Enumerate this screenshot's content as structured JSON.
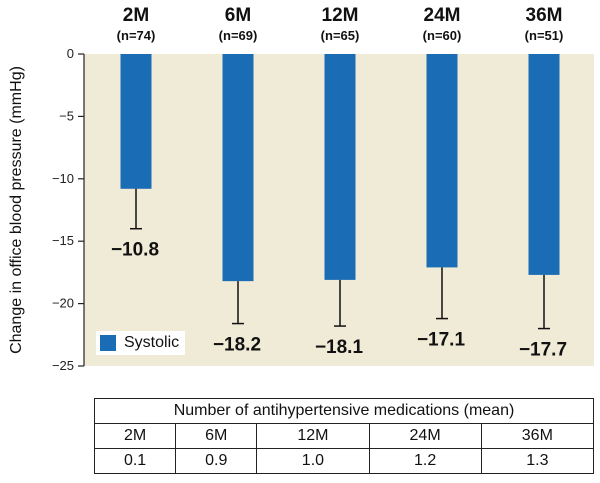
{
  "chart_data": {
    "type": "bar",
    "ylabel": "Change in office blood pressure (mmHg)",
    "ylim": [
      -25,
      0
    ],
    "yticks": [
      0,
      -5,
      -10,
      -15,
      -20,
      -25
    ],
    "yticks_labels": [
      "0",
      "−5",
      "−10",
      "−15",
      "−20",
      "−25"
    ],
    "categories": [
      "2M",
      "6M",
      "12M",
      "24M",
      "36M"
    ],
    "n_labels": [
      "(n=74)",
      "(n=69)",
      "(n=65)",
      "(n=60)",
      "(n=51)"
    ],
    "series": [
      {
        "name": "Systolic",
        "color": "#1a6cb5",
        "values": [
          -10.8,
          -18.2,
          -18.1,
          -17.1,
          -17.7
        ],
        "value_labels": [
          "−10.8",
          "−18.2",
          "−18.1",
          "−17.1",
          "−17.7"
        ],
        "error_lower": [
          -14.0,
          -21.6,
          -21.8,
          -21.2,
          -22.0
        ]
      }
    ],
    "background_color": "#efebd6",
    "legend": "bottom-left"
  },
  "table": {
    "title": "Number of antihypertensive medications (mean)",
    "headers": [
      "2M",
      "6M",
      "12M",
      "24M",
      "36M"
    ],
    "values": [
      "0.1",
      "0.9",
      "1.0",
      "1.2",
      "1.3"
    ]
  }
}
